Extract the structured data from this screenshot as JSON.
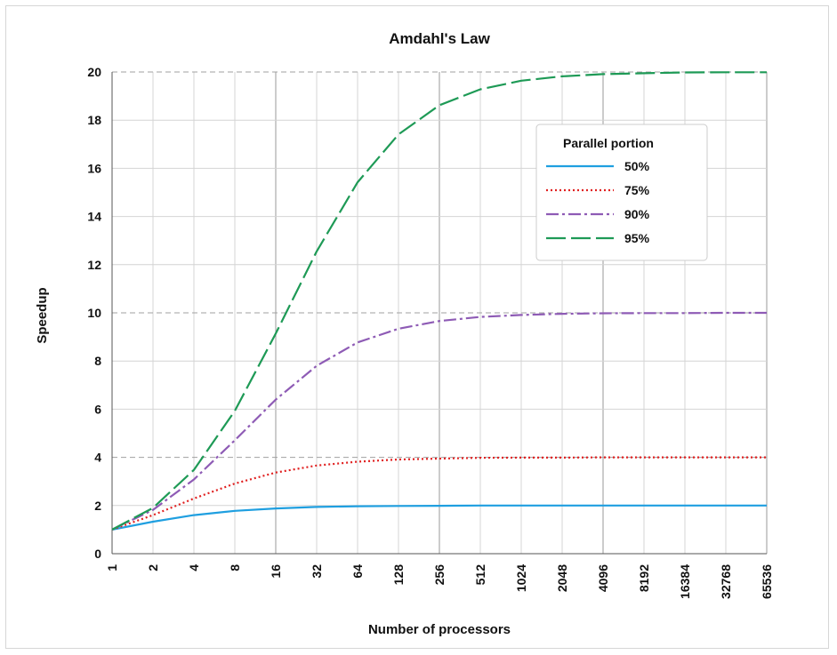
{
  "chart_data": {
    "type": "line",
    "title": "Amdahl's Law",
    "xlabel": "Number of processors",
    "ylabel": "Speedup",
    "x_scale": "log2",
    "x": [
      1,
      2,
      4,
      8,
      16,
      32,
      64,
      128,
      256,
      512,
      1024,
      2048,
      4096,
      8192,
      16384,
      32768,
      65536
    ],
    "x_tick_labels": [
      "1",
      "2",
      "4",
      "8",
      "16",
      "32",
      "64",
      "128",
      "256",
      "512",
      "1024",
      "2048",
      "4096",
      "8192",
      "16384",
      "32768",
      "65536"
    ],
    "ylim": [
      0,
      20
    ],
    "y_ticks": [
      0,
      2,
      4,
      6,
      8,
      10,
      12,
      14,
      16,
      18,
      20
    ],
    "grid": true,
    "legend_title": "Parallel portion",
    "legend_position": "top-right",
    "series": [
      {
        "name": "50%",
        "color": "#1f9fe0",
        "style": "solid",
        "values": [
          1.0,
          1.33,
          1.6,
          1.78,
          1.88,
          1.94,
          1.97,
          1.98,
          1.99,
          2.0,
          2.0,
          2.0,
          2.0,
          2.0,
          2.0,
          2.0,
          2.0
        ]
      },
      {
        "name": "75%",
        "color": "#e02020",
        "style": "dotted",
        "values": [
          1.0,
          1.6,
          2.29,
          2.91,
          3.37,
          3.66,
          3.82,
          3.91,
          3.95,
          3.98,
          3.99,
          3.99,
          4.0,
          4.0,
          4.0,
          4.0,
          4.0
        ]
      },
      {
        "name": "90%",
        "color": "#8e5bb5",
        "style": "dashdot",
        "values": [
          1.0,
          1.82,
          3.08,
          4.71,
          6.4,
          7.8,
          8.77,
          9.34,
          9.66,
          9.83,
          9.91,
          9.96,
          9.98,
          9.99,
          9.99,
          10.0,
          10.0
        ]
      },
      {
        "name": "95%",
        "color": "#1e9a56",
        "style": "longdash",
        "values": [
          1.0,
          1.9,
          3.48,
          5.93,
          9.14,
          12.55,
          15.42,
          17.41,
          18.62,
          19.28,
          19.64,
          19.82,
          19.91,
          19.95,
          19.98,
          19.99,
          19.99
        ]
      }
    ]
  }
}
